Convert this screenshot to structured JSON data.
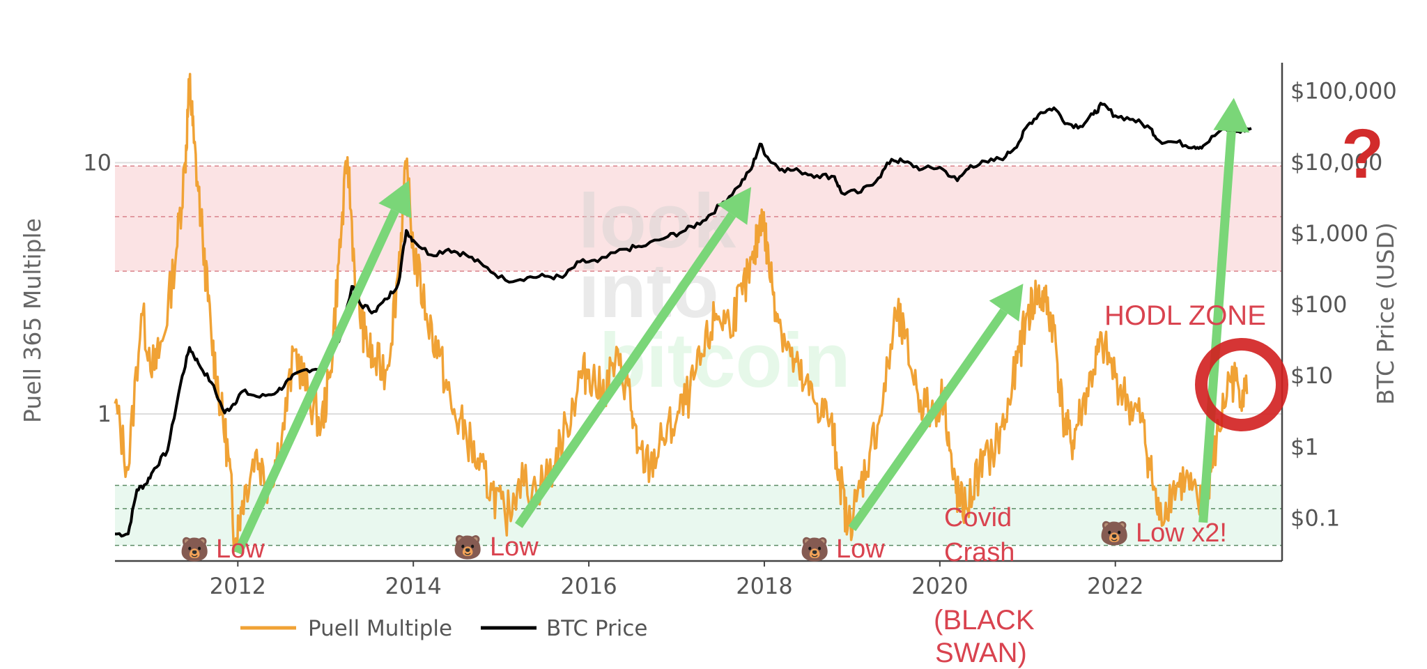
{
  "chart_data": {
    "type": "line",
    "title": "",
    "ylabel": "Puell 365 Multiple",
    "y2label": "BTC Price (USD)",
    "xlabel": "",
    "y_scale": "log",
    "y2_scale": "log",
    "xlim": [
      2010.6,
      2023.9
    ],
    "ylim": [
      0.26,
      25
    ],
    "y2lim": [
      0.025,
      250000
    ],
    "x_ticks": [
      {
        "value": 2012,
        "label": "2012"
      },
      {
        "value": 2014,
        "label": "2014"
      },
      {
        "value": 2016,
        "label": "2016"
      },
      {
        "value": 2018,
        "label": "2018"
      },
      {
        "value": 2020,
        "label": "2020"
      },
      {
        "value": 2022,
        "label": "2022"
      }
    ],
    "y_ticks": [
      {
        "value": 1,
        "label": "1"
      },
      {
        "value": 10,
        "label": "10"
      }
    ],
    "y2_ticks": [
      {
        "value": 0.1,
        "label": "$0.1"
      },
      {
        "value": 1,
        "label": "$1"
      },
      {
        "value": 10,
        "label": "$10"
      },
      {
        "value": 100,
        "label": "$100"
      },
      {
        "value": 1000,
        "label": "$1,000"
      },
      {
        "value": 10000,
        "label": "$10,000"
      },
      {
        "value": 100000,
        "label": "$100,000"
      }
    ],
    "zones": [
      {
        "name": "high",
        "from": 3.7,
        "to": 9.7,
        "color": "#fbe3e4",
        "line_color": "#d9828b",
        "mid": 6.1
      },
      {
        "name": "low",
        "from": 0.3,
        "to": 0.52,
        "color": "#e9f8ef",
        "line_color": "#5a8a63",
        "mid": 0.42
      }
    ],
    "legend": {
      "placement": "bottom-left",
      "entries": [
        {
          "label": "Puell Multiple",
          "color": "#f0a235"
        },
        {
          "label": "BTC Price",
          "color": "#000000"
        }
      ]
    },
    "series": [
      {
        "name": "Puell Multiple",
        "color": "#f0a235",
        "axis": "y",
        "points": [
          [
            2010.6,
            1.1
          ],
          [
            2010.75,
            0.6
          ],
          [
            2010.9,
            2.5
          ],
          [
            2011.05,
            1.5
          ],
          [
            2011.15,
            2.0
          ],
          [
            2011.3,
            4.5
          ],
          [
            2011.4,
            10.0
          ],
          [
            2011.45,
            21.0
          ],
          [
            2011.5,
            12.0
          ],
          [
            2011.6,
            5.0
          ],
          [
            2011.7,
            2.0
          ],
          [
            2011.8,
            1.1
          ],
          [
            2011.9,
            0.65
          ],
          [
            2011.97,
            0.3
          ],
          [
            2012.05,
            0.45
          ],
          [
            2012.2,
            0.7
          ],
          [
            2012.35,
            0.52
          ],
          [
            2012.5,
            0.8
          ],
          [
            2012.65,
            1.8
          ],
          [
            2012.8,
            1.2
          ],
          [
            2012.95,
            0.9
          ],
          [
            2013.05,
            1.4
          ],
          [
            2013.15,
            4.0
          ],
          [
            2013.25,
            10.5
          ],
          [
            2013.35,
            3.0
          ],
          [
            2013.45,
            2.0
          ],
          [
            2013.55,
            1.6
          ],
          [
            2013.7,
            1.5
          ],
          [
            2013.82,
            3.5
          ],
          [
            2013.92,
            9.5
          ],
          [
            2014.0,
            4.5
          ],
          [
            2014.15,
            2.5
          ],
          [
            2014.3,
            1.7
          ],
          [
            2014.45,
            1.0
          ],
          [
            2014.6,
            0.85
          ],
          [
            2014.75,
            0.6
          ],
          [
            2014.9,
            0.5
          ],
          [
            2015.05,
            0.38
          ],
          [
            2015.2,
            0.55
          ],
          [
            2015.4,
            0.5
          ],
          [
            2015.6,
            0.62
          ],
          [
            2015.75,
            0.9
          ],
          [
            2015.9,
            1.4
          ],
          [
            2016.0,
            1.5
          ],
          [
            2016.15,
            1.2
          ],
          [
            2016.3,
            1.6
          ],
          [
            2016.45,
            1.3
          ],
          [
            2016.55,
            0.7
          ],
          [
            2016.7,
            0.62
          ],
          [
            2016.85,
            0.8
          ],
          [
            2017.0,
            0.95
          ],
          [
            2017.15,
            1.2
          ],
          [
            2017.3,
            1.7
          ],
          [
            2017.45,
            2.5
          ],
          [
            2017.6,
            2.3
          ],
          [
            2017.75,
            3.0
          ],
          [
            2017.88,
            4.0
          ],
          [
            2017.97,
            6.5
          ],
          [
            2018.05,
            4.0
          ],
          [
            2018.15,
            2.5
          ],
          [
            2018.3,
            1.7
          ],
          [
            2018.45,
            1.3
          ],
          [
            2018.6,
            1.1
          ],
          [
            2018.75,
            0.95
          ],
          [
            2018.85,
            0.6
          ],
          [
            2018.95,
            0.35
          ],
          [
            2019.05,
            0.45
          ],
          [
            2019.2,
            0.7
          ],
          [
            2019.35,
            1.1
          ],
          [
            2019.5,
            2.5
          ],
          [
            2019.6,
            2.0
          ],
          [
            2019.75,
            1.2
          ],
          [
            2019.9,
            1.0
          ],
          [
            2020.05,
            1.2
          ],
          [
            2020.15,
            0.55
          ],
          [
            2020.22,
            0.45
          ],
          [
            2020.3,
            0.42
          ],
          [
            2020.45,
            0.6
          ],
          [
            2020.6,
            0.7
          ],
          [
            2020.75,
            0.95
          ],
          [
            2020.88,
            1.6
          ],
          [
            2021.0,
            2.5
          ],
          [
            2021.1,
            3.0
          ],
          [
            2021.2,
            2.8
          ],
          [
            2021.3,
            2.2
          ],
          [
            2021.4,
            1.0
          ],
          [
            2021.5,
            0.75
          ],
          [
            2021.6,
            1.0
          ],
          [
            2021.75,
            1.5
          ],
          [
            2021.85,
            1.9
          ],
          [
            2022.0,
            1.4
          ],
          [
            2022.15,
            1.1
          ],
          [
            2022.3,
            0.95
          ],
          [
            2022.4,
            0.6
          ],
          [
            2022.5,
            0.38
          ],
          [
            2022.65,
            0.5
          ],
          [
            2022.8,
            0.55
          ],
          [
            2022.95,
            0.42
          ],
          [
            2023.05,
            0.5
          ],
          [
            2023.15,
            0.75
          ],
          [
            2023.3,
            1.4
          ],
          [
            2023.4,
            1.3
          ],
          [
            2023.5,
            1.2
          ]
        ]
      },
      {
        "name": "BTC Price",
        "color": "#000000",
        "axis": "y2",
        "points": [
          [
            2010.6,
            0.06
          ],
          [
            2010.75,
            0.06
          ],
          [
            2010.85,
            0.25
          ],
          [
            2010.95,
            0.3
          ],
          [
            2011.05,
            0.5
          ],
          [
            2011.2,
            0.9
          ],
          [
            2011.35,
            8.0
          ],
          [
            2011.45,
            25.0
          ],
          [
            2011.55,
            15.0
          ],
          [
            2011.7,
            8.0
          ],
          [
            2011.85,
            3.0
          ],
          [
            2011.95,
            4.0
          ],
          [
            2012.05,
            6.0
          ],
          [
            2012.25,
            5.0
          ],
          [
            2012.45,
            6.0
          ],
          [
            2012.6,
            9.0
          ],
          [
            2012.75,
            12.0
          ],
          [
            2012.95,
            13.0
          ],
          [
            2013.15,
            30.0
          ],
          [
            2013.3,
            180.0
          ],
          [
            2013.4,
            100.0
          ],
          [
            2013.55,
            80.0
          ],
          [
            2013.7,
            120.0
          ],
          [
            2013.83,
            200.0
          ],
          [
            2013.92,
            1100.0
          ],
          [
            2014.0,
            800.0
          ],
          [
            2014.2,
            500.0
          ],
          [
            2014.4,
            600.0
          ],
          [
            2014.6,
            500.0
          ],
          [
            2014.8,
            350.0
          ],
          [
            2015.05,
            220.0
          ],
          [
            2015.3,
            240.0
          ],
          [
            2015.5,
            250.0
          ],
          [
            2015.7,
            240.0
          ],
          [
            2015.9,
            400.0
          ],
          [
            2016.1,
            400.0
          ],
          [
            2016.4,
            600.0
          ],
          [
            2016.6,
            650.0
          ],
          [
            2016.9,
            900.0
          ],
          [
            2017.1,
            1100.0
          ],
          [
            2017.3,
            1500.0
          ],
          [
            2017.5,
            2500.0
          ],
          [
            2017.7,
            4500.0
          ],
          [
            2017.85,
            8000.0
          ],
          [
            2017.95,
            18000.0
          ],
          [
            2018.05,
            11000.0
          ],
          [
            2018.2,
            8000.0
          ],
          [
            2018.4,
            7500.0
          ],
          [
            2018.6,
            6500.0
          ],
          [
            2018.8,
            6300.0
          ],
          [
            2018.88,
            3700.0
          ],
          [
            2019.1,
            3800.0
          ],
          [
            2019.3,
            6000.0
          ],
          [
            2019.45,
            11000.0
          ],
          [
            2019.6,
            10000.0
          ],
          [
            2019.8,
            8000.0
          ],
          [
            2020.0,
            8500.0
          ],
          [
            2020.2,
            5500.0
          ],
          [
            2020.35,
            9000.0
          ],
          [
            2020.55,
            10000.0
          ],
          [
            2020.75,
            12000.0
          ],
          [
            2020.9,
            19000.0
          ],
          [
            2021.0,
            33000.0
          ],
          [
            2021.15,
            50000.0
          ],
          [
            2021.3,
            58000.0
          ],
          [
            2021.45,
            35000.0
          ],
          [
            2021.6,
            32000.0
          ],
          [
            2021.75,
            47000.0
          ],
          [
            2021.85,
            65000.0
          ],
          [
            2022.0,
            45000.0
          ],
          [
            2022.2,
            40000.0
          ],
          [
            2022.4,
            30000.0
          ],
          [
            2022.5,
            20000.0
          ],
          [
            2022.7,
            19000.0
          ],
          [
            2022.9,
            16500.0
          ],
          [
            2023.0,
            17000.0
          ],
          [
            2023.2,
            28000.0
          ],
          [
            2023.4,
            27000.0
          ],
          [
            2023.55,
            30000.0
          ]
        ]
      }
    ],
    "annotations": [
      {
        "text": "Low",
        "x": 2012.2,
        "y": 0.25,
        "icon": "🐻",
        "arrow_to": [
          2013.95,
          8.5
        ]
      },
      {
        "text": "Low",
        "x": 2015.1,
        "y": 0.25,
        "icon": "🐻",
        "arrow_to": [
          2017.85,
          8.0
        ]
      },
      {
        "text": "Low",
        "x": 2019.0,
        "y": 0.25,
        "icon": "🐻",
        "arrow_to": [
          2020.95,
          3.3
        ]
      },
      {
        "text": "Covid Crash",
        "x": 2020.3,
        "y": 0.42
      },
      {
        "text": "(BLACK SWAN)",
        "x": 2020.3,
        "y": 0.12
      },
      {
        "text": "Low x2!",
        "x": 2022.6,
        "y": 0.3,
        "icon": "🐻",
        "arrow_to": [
          2023.35,
          80000.0
        ]
      },
      {
        "text": "HODL ZONE",
        "x": 2023.0,
        "y": 2.5
      },
      {
        "text": "?",
        "x": 2023.8,
        "y": 12.0
      }
    ]
  },
  "watermark": {
    "line1": "look",
    "line2": "into",
    "line3": "bitcoin"
  },
  "legend_labels": {
    "puell": "Puell Multiple",
    "btc": "BTC Price"
  },
  "axis_labels": {
    "left": "Puell 365 Multiple",
    "right": "BTC Price (USD)"
  },
  "annotation_texts": {
    "low1": "Low",
    "low2": "Low",
    "low3": "Low",
    "low4": "Low x2!",
    "covid1": "Covid",
    "covid2": "Crash",
    "black1": "(BLACK",
    "black2": "SWAN)",
    "hodl": "HODL ZONE",
    "question": "?",
    "bear": "🐻"
  },
  "colors": {
    "puell": "#f0a235",
    "btc": "#000000",
    "arrow": "#7ad678",
    "annotation_red": "#d9434f",
    "hodl_ring": "#e02020",
    "axis_text": "#555555",
    "grid": "#dddddd"
  }
}
